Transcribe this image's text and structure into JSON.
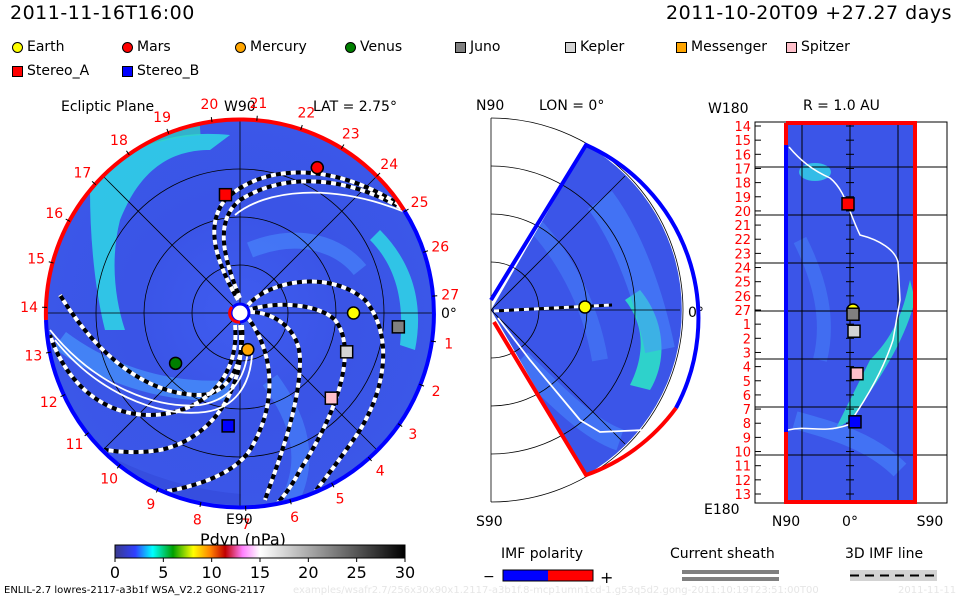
{
  "header": {
    "left_title": "2011-11-16T16:00",
    "right_title": "2011-10-20T09 +27.27 days"
  },
  "legend": {
    "items": [
      {
        "name": "Earth",
        "shape": "circle",
        "color": "#ffff00"
      },
      {
        "name": "Mars",
        "shape": "circle",
        "color": "#ff0000"
      },
      {
        "name": "Mercury",
        "shape": "circle",
        "color": "#ffa500"
      },
      {
        "name": "Venus",
        "shape": "circle",
        "color": "#007f00"
      },
      {
        "name": "Juno",
        "shape": "square",
        "color": "#808080"
      },
      {
        "name": "Kepler",
        "shape": "square",
        "color": "#d3d3d3"
      },
      {
        "name": "Messenger",
        "shape": "square",
        "color": "#ffa500"
      },
      {
        "name": "Spitzer",
        "shape": "square",
        "color": "#ffc0cb"
      },
      {
        "name": "Stereo_A",
        "shape": "square",
        "color": "#ff0000"
      },
      {
        "name": "Stereo_B",
        "shape": "square",
        "color": "#0000ff"
      }
    ]
  },
  "chart_data": [
    {
      "type": "heatmap",
      "title": "Ecliptic Plane",
      "subtitle": "LAT = 2.75°",
      "projection": "polar",
      "top_label": "W90",
      "bottom_label": "E90",
      "right_label": "0°",
      "carrington_tick_labels": [
        "1",
        "2",
        "3",
        "4",
        "5",
        "6",
        "7",
        "8",
        "9",
        "10",
        "11",
        "12",
        "13",
        "14",
        "15",
        "16",
        "17",
        "18",
        "19",
        "20",
        "21",
        "22",
        "23",
        "24",
        "25",
        "26",
        "27"
      ],
      "objects": [
        {
          "name": "Earth",
          "angle_deg": 0,
          "r_au": 1.0
        },
        {
          "name": "Mars",
          "angle_deg": 62,
          "r_au": 1.45
        },
        {
          "name": "Mercury",
          "angle_deg": -78,
          "r_au": 0.33
        },
        {
          "name": "Venus",
          "angle_deg": -142,
          "r_au": 0.72
        },
        {
          "name": "Juno",
          "angle_deg": -5,
          "r_au": 1.4
        },
        {
          "name": "Kepler",
          "angle_deg": -20,
          "r_au": 1.0
        },
        {
          "name": "Spitzer",
          "angle_deg": -43,
          "r_au": 1.1
        },
        {
          "name": "Stereo_A",
          "angle_deg": 97,
          "r_au": 1.05
        },
        {
          "name": "Stereo_B",
          "angle_deg": -96,
          "r_au": 1.0
        }
      ],
      "r_max_au": 1.7
    },
    {
      "type": "heatmap",
      "title": "LON = 0°",
      "projection": "meridional",
      "top_label": "N90",
      "bottom_label": "S90",
      "right_label": "0°",
      "objects": [
        {
          "name": "Earth",
          "angle_deg": 0,
          "r_au": 1.0
        }
      ],
      "lat_range_deg": [
        -60,
        60
      ]
    },
    {
      "type": "heatmap",
      "title": "R = 1.0 AU",
      "top_label": "W180",
      "bottom_label": "E180",
      "x_tick_labels": [
        "N90",
        "0°",
        "S90"
      ],
      "y_tick_labels": [
        "14",
        "15",
        "16",
        "17",
        "18",
        "19",
        "20",
        "21",
        "22",
        "23",
        "24",
        "25",
        "26",
        "27",
        "1",
        "2",
        "3",
        "4",
        "5",
        "6",
        "7",
        "8",
        "9",
        "10",
        "11",
        "12",
        "13"
      ],
      "objects": [
        {
          "name": "Stereo_A",
          "carrington": 19.5,
          "lat_deg": -2
        },
        {
          "name": "Earth",
          "carrington": 27.0,
          "lat_deg": 3
        },
        {
          "name": "Juno",
          "carrington": 27.3,
          "lat_deg": 3
        },
        {
          "name": "Kepler",
          "carrington": 1.5,
          "lat_deg": 4
        },
        {
          "name": "Spitzer",
          "carrington": 4.5,
          "lat_deg": 7
        },
        {
          "name": "Stereo_B",
          "carrington": 7.9,
          "lat_deg": 5
        }
      ]
    },
    {
      "type": "colorbar",
      "label": "Pdyn (nPa)",
      "range": [
        0,
        30
      ],
      "tick_labels": [
        "0",
        "5",
        "10",
        "15",
        "20",
        "25",
        "30"
      ],
      "ticks": [
        0,
        5,
        10,
        15,
        20,
        25,
        30
      ]
    }
  ],
  "keys": {
    "imf_polarity": {
      "label": "IMF polarity",
      "minus": "−",
      "plus": "+",
      "neg_color": "#0000ff",
      "pos_color": "#ff0000"
    },
    "current_sheath": {
      "label": "Current sheath",
      "color": "#808080"
    },
    "imf_line": {
      "label": "3D IMF line"
    }
  },
  "footer": {
    "model": "ENLIL-2.7 lowres-2117-a3b1f WSA_V2.2 GONG-2117",
    "path": "examples/wsafr2.7/256x30x90x1.2117-a3b1f.8-mcp1umn1cd-1.g53q5d2.gong-2011:10:19T23:51:00T00",
    "date": "2011-11-11"
  }
}
